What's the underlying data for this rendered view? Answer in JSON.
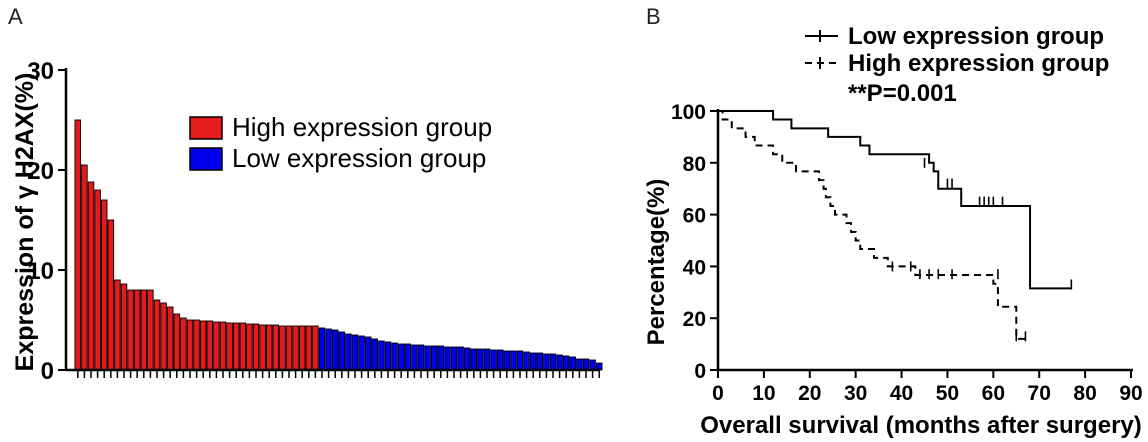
{
  "chart_data": [
    {
      "type": "bar",
      "panel_label": "A",
      "ylabel": "Expression of γ H2AX(%)",
      "xlabel": "",
      "ylim": [
        0,
        30
      ],
      "yticks": [
        "0",
        "10",
        "20",
        "30"
      ],
      "legend_position": "top-right",
      "grid": false,
      "colors": {
        "High expression group": "#e41a1c",
        "Low expression group": "#0000ee"
      },
      "series": [
        {
          "name": "High expression group",
          "values": [
            25.0,
            20.5,
            18.8,
            18.0,
            17.0,
            15.0,
            9.0,
            8.6,
            8.0,
            8.0,
            8.0,
            8.0,
            7.0,
            6.7,
            6.3,
            5.6,
            5.2,
            5.0,
            5.0,
            4.9,
            4.9,
            4.8,
            4.8,
            4.7,
            4.7,
            4.7,
            4.6,
            4.6,
            4.5,
            4.5,
            4.5,
            4.4,
            4.4,
            4.4,
            4.4,
            4.4,
            4.4
          ]
        },
        {
          "name": "Low expression group",
          "values": [
            4.2,
            4.1,
            4.0,
            3.8,
            3.6,
            3.5,
            3.4,
            3.3,
            3.1,
            2.9,
            2.8,
            2.7,
            2.6,
            2.6,
            2.5,
            2.5,
            2.4,
            2.4,
            2.4,
            2.3,
            2.3,
            2.3,
            2.2,
            2.1,
            2.1,
            2.1,
            2.0,
            2.0,
            1.9,
            1.9,
            1.9,
            1.8,
            1.7,
            1.7,
            1.6,
            1.6,
            1.5,
            1.4,
            1.3,
            1.1,
            1.1,
            1.0,
            0.7
          ]
        }
      ]
    },
    {
      "type": "line",
      "subtype": "kaplan-meier",
      "panel_label": "B",
      "xlabel": "Overall survival (months after surgery)",
      "ylabel": "Percentage(%)",
      "xlim": [
        0,
        90
      ],
      "ylim": [
        0,
        100
      ],
      "xticks": [
        "0",
        "10",
        "20",
        "30",
        "40",
        "50",
        "60",
        "70",
        "80",
        "90"
      ],
      "yticks": [
        "0",
        "20",
        "40",
        "60",
        "80",
        "100"
      ],
      "annotation": "**P=0.001",
      "legend_position": "top-right",
      "grid": false,
      "series": [
        {
          "name": "Low expression group",
          "style": "solid",
          "steps": [
            [
              0,
              100
            ],
            [
              12,
              96.7
            ],
            [
              16,
              93.3
            ],
            [
              24,
              90
            ],
            [
              31,
              86.7
            ],
            [
              33,
              83.3
            ],
            [
              46,
              80
            ],
            [
              47,
              76.7
            ],
            [
              48,
              70
            ],
            [
              53,
              63.3
            ],
            [
              68,
              31.5
            ],
            [
              77,
              31.5
            ]
          ],
          "censored": [
            [
              45,
              80
            ],
            [
              50,
              72
            ],
            [
              51,
              72
            ],
            [
              57,
              65
            ],
            [
              58,
              65
            ],
            [
              59,
              65
            ],
            [
              60,
              65
            ],
            [
              62,
              65
            ],
            [
              77,
              33
            ]
          ]
        },
        {
          "name": "High expression group",
          "style": "dashed",
          "steps": [
            [
              0,
              100
            ],
            [
              1,
              96.7
            ],
            [
              3,
              93.3
            ],
            [
              6,
              90
            ],
            [
              8,
              86.7
            ],
            [
              12,
              83.3
            ],
            [
              14,
              80
            ],
            [
              17,
              76.7
            ],
            [
              22,
              73.3
            ],
            [
              23,
              70
            ],
            [
              23.5,
              66.7
            ],
            [
              24.5,
              63.3
            ],
            [
              25.5,
              60
            ],
            [
              28,
              56.7
            ],
            [
              29,
              53.3
            ],
            [
              30,
              50
            ],
            [
              31,
              46.7
            ],
            [
              34,
              43.3
            ],
            [
              37,
              40
            ],
            [
              43,
              36.7
            ],
            [
              60,
              33.3
            ],
            [
              61,
              24.4
            ],
            [
              65,
              12
            ],
            [
              67,
              12
            ]
          ],
          "censored": [
            [
              38,
              40
            ],
            [
              42,
              40
            ],
            [
              44,
              37
            ],
            [
              46,
              37
            ],
            [
              48,
              37
            ],
            [
              51,
              37
            ],
            [
              61,
              37
            ],
            [
              65,
              13
            ],
            [
              67,
              13
            ]
          ]
        }
      ]
    }
  ]
}
